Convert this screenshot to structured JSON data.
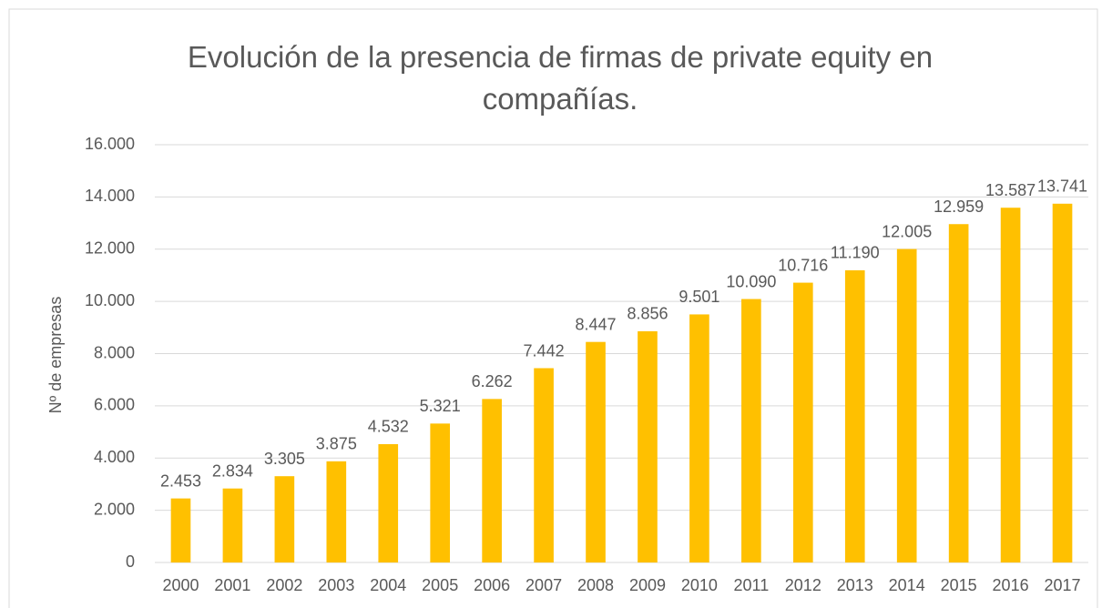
{
  "chart_data": {
    "type": "bar",
    "title": "Evolución de la presencia de firmas de private equity en compañías.",
    "y_label": "Nº de empresas",
    "categories": [
      "2000",
      "2001",
      "2002",
      "2003",
      "2004",
      "2005",
      "2006",
      "2007",
      "2008",
      "2009",
      "2010",
      "2011",
      "2012",
      "2013",
      "2014",
      "2015",
      "2016",
      "2017"
    ],
    "values": [
      2453,
      2834,
      3305,
      3875,
      4532,
      5321,
      6262,
      7442,
      8447,
      8856,
      9501,
      10090,
      10716,
      11190,
      12005,
      12959,
      13587,
      13741
    ],
    "value_labels": [
      "2.453",
      "2.834",
      "3.305",
      "3.875",
      "4.532",
      "5.321",
      "6.262",
      "7.442",
      "8.447",
      "8.856",
      "9.501",
      "10.090",
      "10.716",
      "11.190",
      "12.005",
      "12.959",
      "13.587",
      "13.741"
    ],
    "color": "#ffc000",
    "ylim": [
      0,
      16000
    ],
    "yticks": [
      0,
      {
        "value": 2000,
        "label": "2.000"
      },
      {
        "value": 4000,
        "label": "4.000"
      },
      {
        "value": 6000,
        "label": "6.000"
      },
      {
        "value": 8000,
        "label": "8.000"
      },
      {
        "value": 10000,
        "label": "10.000"
      },
      {
        "value": 12000,
        "label": "12.000"
      },
      {
        "value": 14000,
        "label": "14.000"
      },
      {
        "value": 16000,
        "label": "16.000"
      }
    ],
    "grid": true
  }
}
